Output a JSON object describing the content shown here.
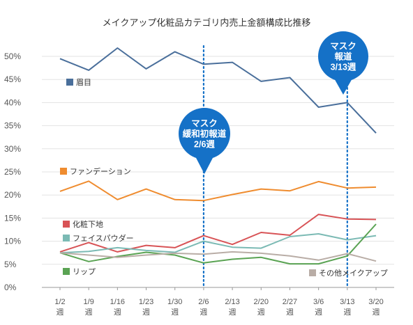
{
  "chart_data": {
    "type": "line",
    "title": "メイクアップ化粧品カテゴリ内売上金額構成比推移",
    "xlabel": "",
    "ylabel": "",
    "ylim": [
      0,
      50
    ],
    "y_ticks": [
      "0%",
      "5%",
      "10%",
      "15%",
      "20%",
      "25%",
      "30%",
      "35%",
      "40%",
      "45%",
      "50%"
    ],
    "grid": "horizontal",
    "categories": [
      [
        "1/2",
        "週"
      ],
      [
        "1/9",
        "週"
      ],
      [
        "1/16",
        "週"
      ],
      [
        "1/23",
        "週"
      ],
      [
        "1/30",
        "週"
      ],
      [
        "2/6",
        "週"
      ],
      [
        "2/13",
        "週"
      ],
      [
        "2/20",
        "週"
      ],
      [
        "2/27",
        "週"
      ],
      [
        "3/6",
        "週"
      ],
      [
        "3/13",
        "週"
      ],
      [
        "3/20",
        "週"
      ]
    ],
    "series": [
      {
        "name": "眉目",
        "color": "#4a6f9b",
        "values": [
          49.5,
          47.0,
          51.8,
          47.3,
          51.0,
          48.3,
          48.7,
          44.6,
          45.4,
          39.0,
          40.0,
          33.4
        ]
      },
      {
        "name": "ファンデーション",
        "color": "#ef8c2f",
        "values": [
          20.8,
          23.0,
          19.0,
          21.3,
          19.0,
          18.8,
          20.1,
          21.3,
          20.9,
          22.9,
          21.5,
          21.7
        ]
      },
      {
        "name": "化粧下地",
        "color": "#d85356",
        "values": [
          7.7,
          9.7,
          7.7,
          9.1,
          8.6,
          11.2,
          9.3,
          11.9,
          11.3,
          15.8,
          14.8,
          14.7
        ]
      },
      {
        "name": "フェイスパウダー",
        "color": "#7bbab4",
        "values": [
          7.5,
          7.8,
          8.6,
          8.0,
          7.6,
          10.0,
          8.7,
          8.5,
          11.0,
          11.6,
          10.3,
          11.2
        ]
      },
      {
        "name": "リップ",
        "color": "#5aa353",
        "values": [
          7.5,
          5.6,
          6.7,
          7.6,
          7.0,
          5.3,
          6.1,
          6.5,
          5.1,
          5.1,
          6.8,
          13.7
        ]
      },
      {
        "name": "その他メイクアップ",
        "color": "#b9ada6",
        "values": [
          7.5,
          7.0,
          6.5,
          7.0,
          7.4,
          7.2,
          7.7,
          7.4,
          6.8,
          5.9,
          7.3,
          5.7
        ]
      }
    ],
    "annotations": [
      {
        "category_index": 5,
        "lines": [
          "マスク",
          "緩和初報道",
          "2/6週"
        ],
        "color": "#1571c7"
      },
      {
        "category_index": 10,
        "lines": [
          "マスク",
          "報道",
          "3/13週"
        ],
        "color": "#1571c7"
      }
    ]
  }
}
